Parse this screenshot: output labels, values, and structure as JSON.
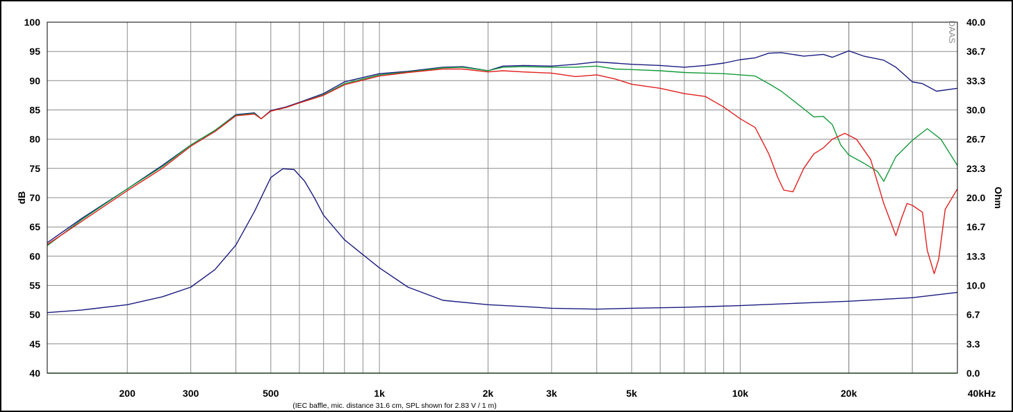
{
  "chart_data": {
    "type": "line",
    "xlabel": "",
    "caption": "(IEC baffle, mic. distance 31.6 cm, SPL shown for 2.83 V / 1 m)",
    "ylabel": "dB",
    "y2label": "Ohm",
    "watermark": "DAAS",
    "x_scale": "log",
    "xlim": [
      120,
      40000
    ],
    "ylim": [
      40,
      100
    ],
    "y2lim": [
      0.0,
      40.0
    ],
    "grid": true,
    "x_ticks": [
      {
        "value": 200,
        "label": "200"
      },
      {
        "value": 300,
        "label": "300"
      },
      {
        "value": 500,
        "label": "500"
      },
      {
        "value": 1000,
        "label": "1k"
      },
      {
        "value": 2000,
        "label": "2k"
      },
      {
        "value": 3000,
        "label": "3k"
      },
      {
        "value": 5000,
        "label": "5k"
      },
      {
        "value": 10000,
        "label": "10k"
      },
      {
        "value": 20000,
        "label": "20k"
      },
      {
        "value": 40000,
        "label": "40kHz"
      }
    ],
    "y_ticks": [
      "100",
      "95",
      "90",
      "85",
      "80",
      "75",
      "70",
      "65",
      "60",
      "55",
      "50",
      "45",
      "40"
    ],
    "y2_ticks": [
      "40.0",
      "36.7",
      "33.3",
      "30.0",
      "26.7",
      "23.3",
      "20.0",
      "16.7",
      "13.3",
      "10.0",
      "6.7",
      "3.3",
      "0.0"
    ],
    "colors": {
      "axis": "#000000",
      "grid": "#8c8c8c",
      "xaxis_line": "#50b450"
    },
    "series": [
      {
        "color": "#1a1a80",
        "axis": "left",
        "x": [
          120,
          150,
          200,
          250,
          300,
          350,
          400,
          450,
          470,
          500,
          550,
          600,
          700,
          800,
          1000,
          1200,
          1500,
          1700,
          2000,
          2200,
          2500,
          3000,
          3500,
          4000,
          4500,
          5000,
          6000,
          7000,
          8000,
          9000,
          10000,
          11000,
          12000,
          13000,
          15000,
          17000,
          18000,
          20000,
          22000,
          25000,
          27000,
          30000,
          32000,
          35000,
          40000
        ],
        "values": [
          62.3,
          66.5,
          71.5,
          75.5,
          79.0,
          81.5,
          84.2,
          84.5,
          83.5,
          84.9,
          85.5,
          86.3,
          87.8,
          89.8,
          91.2,
          91.6,
          92.3,
          92.4,
          91.7,
          92.5,
          92.6,
          92.5,
          92.8,
          93.2,
          93.0,
          92.8,
          92.6,
          92.3,
          92.6,
          93.0,
          93.6,
          93.9,
          94.7,
          94.8,
          94.2,
          94.5,
          94.0,
          95.1,
          94.2,
          93.5,
          92.3,
          89.8,
          89.5,
          88.2,
          88.7
        ]
      },
      {
        "color": "#129a3a",
        "axis": "left",
        "x": [
          120,
          150,
          200,
          250,
          300,
          350,
          400,
          450,
          470,
          500,
          550,
          600,
          700,
          800,
          1000,
          1200,
          1500,
          1700,
          2000,
          2200,
          2500,
          3000,
          3500,
          4000,
          4500,
          5000,
          6000,
          7000,
          8000,
          9000,
          10000,
          11000,
          12000,
          13000,
          15000,
          16000,
          17000,
          18000,
          19000,
          20000,
          22000,
          24000,
          25000,
          27000,
          30000,
          33000,
          36000,
          40000
        ],
        "values": [
          61.8,
          66.3,
          71.5,
          75.3,
          79.0,
          81.5,
          84.1,
          84.4,
          83.5,
          84.8,
          85.4,
          86.2,
          87.6,
          89.5,
          91.0,
          91.5,
          92.2,
          92.3,
          91.7,
          92.3,
          92.4,
          92.3,
          92.3,
          92.5,
          92.0,
          91.9,
          91.7,
          91.4,
          91.3,
          91.2,
          91.0,
          90.8,
          89.5,
          88.2,
          85.2,
          83.8,
          83.9,
          82.5,
          79.0,
          77.3,
          75.9,
          74.5,
          72.8,
          77.0,
          79.8,
          81.8,
          80.0,
          75.5
        ]
      },
      {
        "color": "#e01e1e",
        "axis": "left",
        "x": [
          120,
          150,
          200,
          250,
          300,
          350,
          400,
          450,
          470,
          500,
          550,
          600,
          700,
          800,
          1000,
          1200,
          1500,
          1700,
          2000,
          2200,
          2500,
          3000,
          3500,
          4000,
          4500,
          5000,
          6000,
          7000,
          8000,
          9000,
          10000,
          11000,
          12000,
          12700,
          13200,
          14000,
          15000,
          16000,
          17000,
          18000,
          19500,
          21000,
          23000,
          25000,
          27000,
          28000,
          29000,
          30000,
          32000,
          33000,
          34500,
          35500,
          37000,
          40000
        ],
        "values": [
          62.0,
          66.0,
          71.2,
          75.0,
          78.8,
          81.3,
          84.0,
          84.3,
          83.5,
          84.8,
          85.4,
          86.2,
          87.5,
          89.3,
          90.8,
          91.4,
          92.0,
          92.0,
          91.5,
          91.7,
          91.5,
          91.3,
          90.7,
          91.0,
          90.3,
          89.4,
          88.7,
          87.8,
          87.3,
          85.5,
          83.5,
          82.0,
          77.5,
          73.5,
          71.3,
          71.0,
          75.0,
          77.5,
          78.5,
          80.0,
          81.0,
          80.0,
          76.5,
          69.0,
          63.5,
          66.5,
          69.0,
          68.7,
          67.5,
          61.0,
          57.0,
          59.5,
          68.0,
          71.5
        ]
      },
      {
        "color": "#1a1a80",
        "axis": "right",
        "x": [
          120,
          150,
          200,
          250,
          300,
          350,
          400,
          450,
          500,
          540,
          580,
          620,
          660,
          700,
          800,
          900,
          1000,
          1200,
          1500,
          2000,
          2500,
          3000,
          4000,
          5000,
          7000,
          10000,
          15000,
          20000,
          30000,
          40000
        ],
        "values": [
          6.9,
          7.2,
          7.8,
          8.7,
          9.8,
          11.8,
          14.6,
          18.4,
          22.3,
          23.3,
          23.2,
          21.9,
          20.0,
          18.0,
          15.2,
          13.5,
          12.0,
          9.8,
          8.3,
          7.8,
          7.6,
          7.4,
          7.3,
          7.4,
          7.5,
          7.7,
          8.0,
          8.2,
          8.6,
          9.2
        ]
      }
    ]
  }
}
